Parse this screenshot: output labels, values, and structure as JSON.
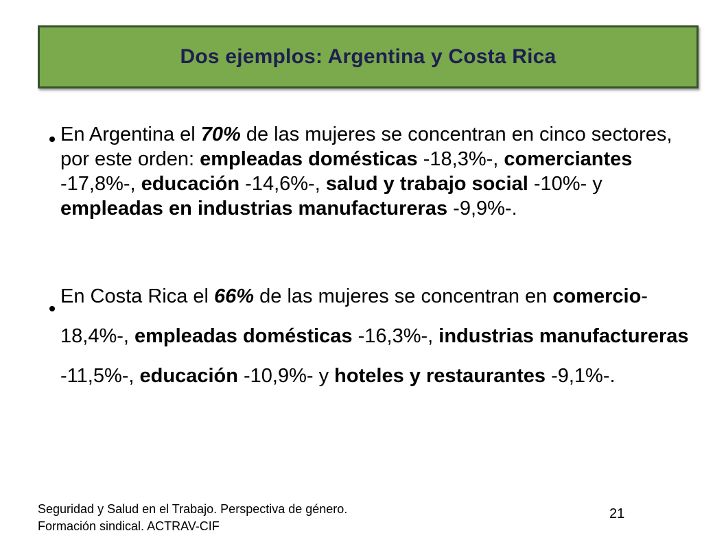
{
  "colors": {
    "title_fill": "#7aaa4c",
    "title_border": "#38512c",
    "title_text": "#1f1f4f"
  },
  "title": "Dos ejemplos: Argentina y Costa Rica",
  "bullets": [
    {
      "icon": "bullet-dot-icon",
      "segments": [
        {
          "t": "En Argentina el ",
          "s": "n"
        },
        {
          "t": "70%",
          "s": "bi"
        },
        {
          "t": " de las mujeres se concentran en cinco sectores, por este orden: ",
          "s": "n"
        },
        {
          "t": "empleadas domésticas",
          "s": "b"
        },
        {
          "t": " -18,3%-, ",
          "s": "n"
        },
        {
          "t": "comerciantes",
          "s": "b"
        },
        {
          "t": " -17,8%-, ",
          "s": "n"
        },
        {
          "t": "educación",
          "s": "b"
        },
        {
          "t": " -14,6%-, ",
          "s": "n"
        },
        {
          "t": "salud y trabajo social",
          "s": "b"
        },
        {
          "t": " -10%- y ",
          "s": "n"
        },
        {
          "t": "empleadas en industrias manufactureras",
          "s": "b"
        },
        {
          "t": " -9,9%-.",
          "s": "n"
        }
      ]
    },
    {
      "icon": "bullet-dot-icon",
      "segments": [
        {
          "t": "En  Costa Rica el ",
          "s": "n"
        },
        {
          "t": "66%",
          "s": "bi"
        },
        {
          "t": " de las mujeres se concentran en ",
          "s": "n"
        },
        {
          "t": "comercio",
          "s": "b"
        },
        {
          "t": "-18,4%-, ",
          "s": "n"
        },
        {
          "t": "empleadas domésticas",
          "s": "b"
        },
        {
          "t": " -16,3%-, ",
          "s": "n"
        },
        {
          "t": "industrias manufactureras",
          "s": "b"
        },
        {
          "t": " -11,5%-, ",
          "s": "n"
        },
        {
          "t": "educación",
          "s": "b"
        },
        {
          "t": " -10,9%- y  ",
          "s": "n"
        },
        {
          "t": "hoteles y restaurantes",
          "s": "b"
        },
        {
          "t": " -9,1%-.",
          "s": "n"
        }
      ]
    }
  ],
  "footer": {
    "line1": "Seguridad y Salud en el Trabajo. Perspectiva de género.",
    "line2": "Formación sindical. ACTRAV-CIF",
    "page_number": "21"
  }
}
